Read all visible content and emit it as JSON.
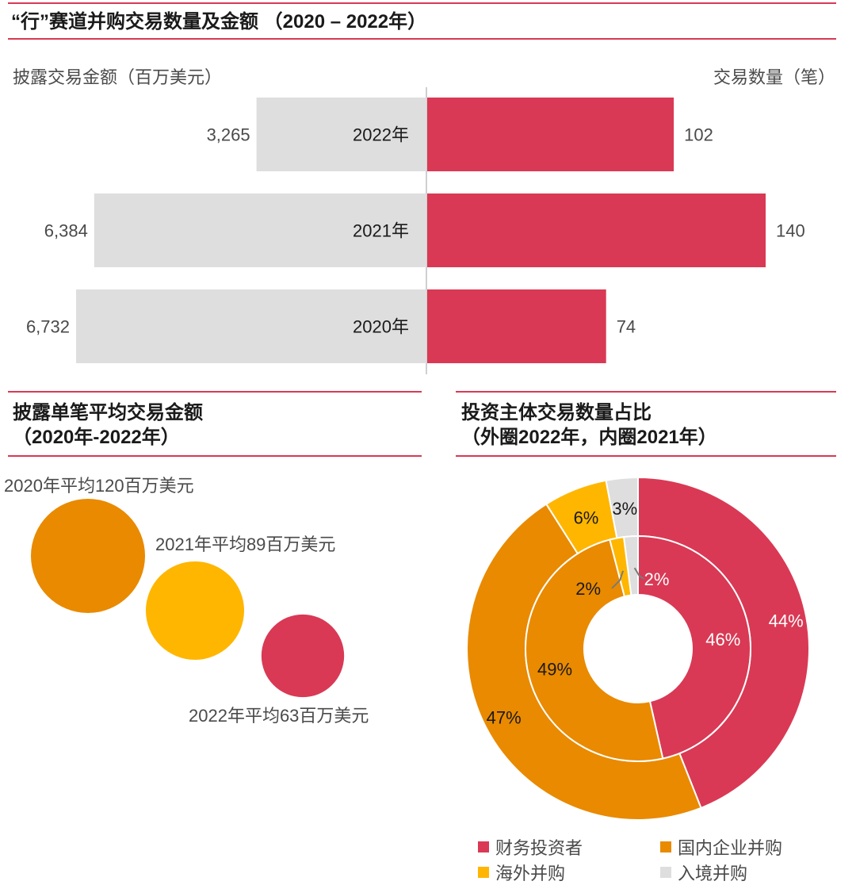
{
  "colors": {
    "accent": "#d93954",
    "orange": "#e98a00",
    "yellow": "#ffb600",
    "grey": "#dedede"
  },
  "top_chart": {
    "title": "“行”赛道并购交易数量及金额 （2020 – 2022年）",
    "left_label": "披露交易金额（百万美元）",
    "right_label": "交易数量（笔）"
  },
  "bubble_panel": {
    "title_line1": "披露单笔平均交易金额",
    "title_line2": "（2020年-2022年）"
  },
  "donut_panel": {
    "title_line1": "投资主体交易数量占比",
    "title_line2": "（外圈2022年，内圈2021年）"
  },
  "chart_data": [
    {
      "type": "bar",
      "orientation": "horizontal-butterfly",
      "categories": [
        "2022年",
        "2021年",
        "2020年"
      ],
      "series": [
        {
          "name": "披露交易金额（百万美元）",
          "values": [
            3265,
            6384,
            6732
          ],
          "labels": [
            "3,265",
            "6,384",
            "6,732"
          ],
          "color": "#dedede"
        },
        {
          "name": "交易数量（笔）",
          "values": [
            102,
            140,
            74
          ],
          "labels": [
            "102",
            "140",
            "74"
          ],
          "color": "#d93954"
        }
      ]
    },
    {
      "type": "scatter",
      "style": "bubble",
      "points": [
        {
          "year": 2020,
          "value": 120,
          "label": "2020年平均120百万美元",
          "color": "#e98a00"
        },
        {
          "year": 2021,
          "value": 89,
          "label": "2021年平均89百万美元",
          "color": "#ffb600"
        },
        {
          "year": 2022,
          "value": 63,
          "label": "2022年平均63百万美元",
          "color": "#d93954"
        }
      ]
    },
    {
      "type": "pie",
      "style": "double-donut",
      "categories": [
        "财务投资者",
        "国内企业并购",
        "海外并购",
        "入境并购"
      ],
      "colors": [
        "#d93954",
        "#e98a00",
        "#ffb600",
        "#dedede"
      ],
      "outer": {
        "values": [
          44,
          47,
          6,
          3
        ],
        "labels": [
          "44%",
          "47%",
          "6%",
          "3%"
        ]
      },
      "inner": {
        "values": [
          46,
          49,
          2,
          2
        ],
        "labels": [
          "46%",
          "49%",
          "2%",
          "2%"
        ]
      },
      "legend": "bottom"
    }
  ]
}
